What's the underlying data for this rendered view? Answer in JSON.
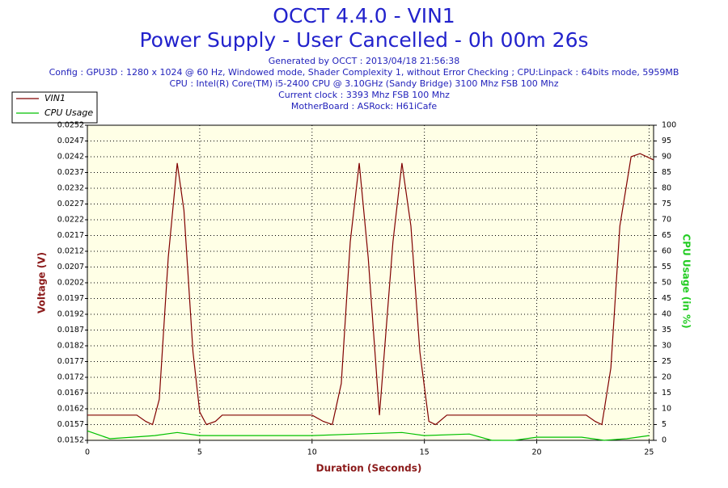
{
  "chart_data": {
    "type": "line",
    "title": "OCCT 4.4.0 - VIN1",
    "subtitle": "Power Supply - User Cancelled - 0h 00m 26s",
    "annotations": [
      "Generated by OCCT : 2013/04/18 21:56:38",
      "Config : GPU3D : 1280 x 1024 @ 60 Hz, Windowed mode, Shader Complexity 1, without Error Checking ; CPU:Linpack : 64bits mode, 5959MB",
      "CPU : Intel(R) Core(TM) i5-2400 CPU @ 3.10GHz (Sandy Bridge) 3100 Mhz FSB 100 Mhz",
      "Current clock : 3393 Mhz FSB 100 Mhz",
      "MotherBoard : ASRock: H61iCafe"
    ],
    "xlabel": "Duration (Seconds)",
    "ylabel": "Voltage (V)",
    "y2label": "CPU Usage (in %)",
    "xlim": [
      0,
      25.2
    ],
    "xticks": [
      0,
      5,
      10,
      15,
      20,
      25
    ],
    "ylim": [
      0.0152,
      0.0252
    ],
    "yticks": [
      0.0152,
      0.0157,
      0.0162,
      0.0167,
      0.0172,
      0.0177,
      0.0182,
      0.0187,
      0.0192,
      0.0197,
      0.0202,
      0.0207,
      0.0212,
      0.0217,
      0.0222,
      0.0227,
      0.0232,
      0.0237,
      0.0242,
      0.0247,
      0.0252
    ],
    "y2lim": [
      0,
      100
    ],
    "y2ticks": [
      0,
      5,
      10,
      15,
      20,
      25,
      30,
      35,
      40,
      45,
      50,
      55,
      60,
      65,
      70,
      75,
      80,
      85,
      90,
      95,
      100
    ],
    "grid": true,
    "legend": "top-left",
    "series": [
      {
        "name": "VIN1",
        "color": "#800000",
        "x": [
          0,
          2.2,
          2.6,
          2.9,
          3.2,
          3.6,
          4.0,
          4.3,
          4.7,
          5.0,
          5.3,
          5.7,
          6.0,
          10.0,
          10.5,
          10.9,
          11.3,
          11.7,
          12.1,
          12.5,
          13.0,
          13.6,
          14.0,
          14.4,
          14.8,
          15.2,
          15.5,
          16.0,
          22.2,
          22.6,
          22.9,
          23.3,
          23.7,
          24.2,
          24.6,
          25.2
        ],
        "values": [
          0.016,
          0.016,
          0.0158,
          0.0157,
          0.0165,
          0.021,
          0.024,
          0.0225,
          0.018,
          0.0161,
          0.0157,
          0.0158,
          0.016,
          0.016,
          0.0158,
          0.0157,
          0.017,
          0.0215,
          0.024,
          0.021,
          0.016,
          0.0215,
          0.024,
          0.022,
          0.018,
          0.0158,
          0.0157,
          0.016,
          0.016,
          0.0158,
          0.0157,
          0.0175,
          0.022,
          0.0242,
          0.0243,
          0.0241
        ]
      },
      {
        "name": "CPU Usage",
        "color": "#00c000",
        "axis": "y2",
        "x": [
          0,
          1,
          2,
          3,
          4,
          5,
          6,
          10,
          12,
          14,
          15,
          17,
          18,
          19,
          20,
          22,
          23,
          24,
          25
        ],
        "values": [
          3,
          0.5,
          1,
          1.5,
          2.5,
          1.5,
          1.5,
          1.5,
          2,
          2.5,
          1.5,
          2,
          0,
          0,
          1,
          1,
          0,
          0.5,
          1.5
        ]
      }
    ]
  }
}
